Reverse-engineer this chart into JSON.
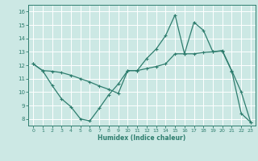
{
  "xlabel": "Humidex (Indice chaleur)",
  "bg_color": "#cce8e4",
  "line_color": "#2e7d6e",
  "grid_color": "#ffffff",
  "xlim": [
    -0.5,
    23.5
  ],
  "ylim": [
    7.5,
    16.5
  ],
  "xticks": [
    0,
    1,
    2,
    3,
    4,
    5,
    6,
    7,
    8,
    9,
    10,
    11,
    12,
    13,
    14,
    15,
    16,
    17,
    18,
    19,
    20,
    21,
    22,
    23
  ],
  "yticks": [
    8,
    9,
    10,
    11,
    12,
    13,
    14,
    15,
    16
  ],
  "series1_x": [
    0,
    1,
    2,
    3,
    4,
    5,
    6,
    7,
    8,
    9,
    10,
    11,
    12,
    13,
    14,
    15,
    16,
    17,
    18,
    19,
    20,
    21,
    22,
    23
  ],
  "series1_y": [
    12.1,
    11.6,
    10.5,
    9.5,
    8.9,
    8.0,
    7.85,
    8.8,
    9.8,
    10.6,
    11.6,
    11.6,
    12.5,
    13.2,
    14.2,
    15.75,
    12.85,
    15.2,
    14.6,
    13.0,
    13.1,
    11.6,
    10.0,
    7.75
  ],
  "series2_x": [
    0,
    1,
    2,
    3,
    4,
    5,
    6,
    7,
    8,
    9,
    10,
    11,
    12,
    13,
    14,
    15,
    16,
    17,
    18,
    19,
    20,
    21,
    22,
    23
  ],
  "series2_y": [
    12.1,
    11.6,
    11.55,
    11.45,
    11.25,
    11.0,
    10.75,
    10.45,
    10.2,
    9.9,
    11.6,
    11.6,
    11.75,
    11.9,
    12.1,
    12.85,
    12.85,
    12.85,
    12.95,
    13.0,
    13.05,
    11.55,
    8.4,
    7.75
  ]
}
